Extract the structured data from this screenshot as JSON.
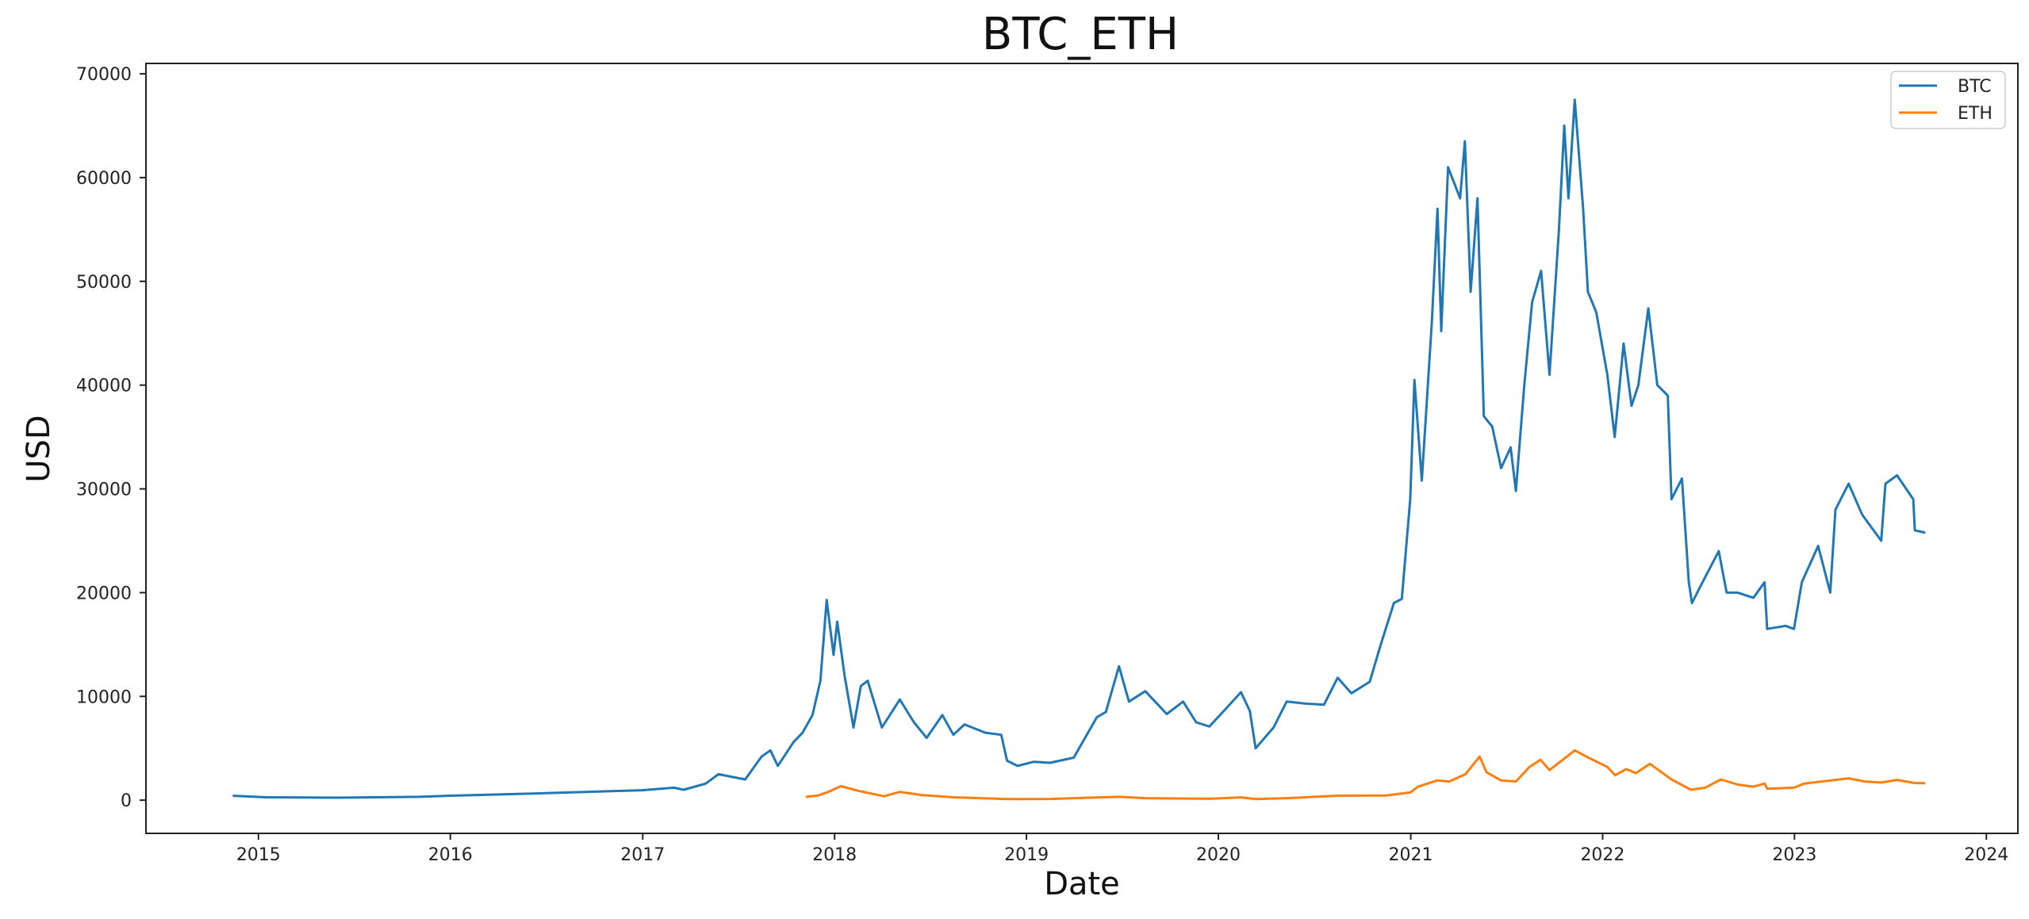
{
  "chart_data": {
    "type": "line",
    "title": "BTC_ETH",
    "xlabel": "Date",
    "ylabel": "USD",
    "xlim": [
      "2014-06-01",
      "2024-03-01"
    ],
    "ylim": [
      -3200,
      71000
    ],
    "xticks": [
      "2015",
      "2016",
      "2017",
      "2018",
      "2019",
      "2020",
      "2021",
      "2022",
      "2023",
      "2024"
    ],
    "yticks": [
      0,
      10000,
      20000,
      30000,
      40000,
      50000,
      60000,
      70000
    ],
    "ytick_labels": [
      "0",
      "10000",
      "20000",
      "30000",
      "40000",
      "50000",
      "60000",
      "70000"
    ],
    "grid": false,
    "legend_position": "top-right",
    "series": [
      {
        "name": "BTC",
        "color": "#1f77b4",
        "points": [
          [
            "2014-11-15",
            420
          ],
          [
            "2015-01-15",
            280
          ],
          [
            "2015-06-01",
            240
          ],
          [
            "2015-11-05",
            320
          ],
          [
            "2016-01-01",
            430
          ],
          [
            "2016-06-15",
            650
          ],
          [
            "2016-07-01",
            680
          ],
          [
            "2016-12-31",
            960
          ],
          [
            "2017-03-01",
            1200
          ],
          [
            "2017-03-20",
            1000
          ],
          [
            "2017-05-01",
            1600
          ],
          [
            "2017-05-25",
            2500
          ],
          [
            "2017-07-15",
            2000
          ],
          [
            "2017-08-15",
            4200
          ],
          [
            "2017-09-01",
            4800
          ],
          [
            "2017-09-15",
            3300
          ],
          [
            "2017-10-15",
            5600
          ],
          [
            "2017-11-01",
            6500
          ],
          [
            "2017-11-20",
            8200
          ],
          [
            "2017-12-05",
            11500
          ],
          [
            "2017-12-17",
            19300
          ],
          [
            "2017-12-30",
            14000
          ],
          [
            "2018-01-06",
            17200
          ],
          [
            "2018-01-20",
            12000
          ],
          [
            "2018-02-06",
            7000
          ],
          [
            "2018-02-20",
            11000
          ],
          [
            "2018-03-05",
            11500
          ],
          [
            "2018-04-01",
            7000
          ],
          [
            "2018-05-05",
            9700
          ],
          [
            "2018-06-01",
            7500
          ],
          [
            "2018-06-25",
            6000
          ],
          [
            "2018-07-25",
            8200
          ],
          [
            "2018-08-15",
            6300
          ],
          [
            "2018-09-05",
            7300
          ],
          [
            "2018-10-15",
            6500
          ],
          [
            "2018-11-14",
            6300
          ],
          [
            "2018-11-25",
            3800
          ],
          [
            "2018-12-15",
            3300
          ],
          [
            "2019-01-15",
            3700
          ],
          [
            "2019-02-15",
            3600
          ],
          [
            "2019-04-01",
            4100
          ],
          [
            "2019-05-15",
            8000
          ],
          [
            "2019-06-01",
            8500
          ],
          [
            "2019-06-26",
            12900
          ],
          [
            "2019-07-15",
            9500
          ],
          [
            "2019-08-15",
            10500
          ],
          [
            "2019-09-25",
            8300
          ],
          [
            "2019-10-26",
            9500
          ],
          [
            "2019-11-20",
            7500
          ],
          [
            "2019-12-15",
            7100
          ],
          [
            "2020-01-15",
            8800
          ],
          [
            "2020-02-13",
            10400
          ],
          [
            "2020-03-01",
            8600
          ],
          [
            "2020-03-12",
            5000
          ],
          [
            "2020-04-15",
            7000
          ],
          [
            "2020-05-10",
            9500
          ],
          [
            "2020-06-15",
            9300
          ],
          [
            "2020-07-20",
            9200
          ],
          [
            "2020-08-15",
            11800
          ],
          [
            "2020-09-10",
            10300
          ],
          [
            "2020-10-15",
            11400
          ],
          [
            "2020-11-05",
            15000
          ],
          [
            "2020-11-30",
            19000
          ],
          [
            "2020-12-15",
            19400
          ],
          [
            "2020-12-31",
            29000
          ],
          [
            "2021-01-08",
            40500
          ],
          [
            "2021-01-22",
            30800
          ],
          [
            "2021-02-10",
            46000
          ],
          [
            "2021-02-21",
            57000
          ],
          [
            "2021-02-28",
            45200
          ],
          [
            "2021-03-13",
            61000
          ],
          [
            "2021-04-05",
            58000
          ],
          [
            "2021-04-14",
            63500
          ],
          [
            "2021-04-25",
            49000
          ],
          [
            "2021-05-08",
            58000
          ],
          [
            "2021-05-20",
            37000
          ],
          [
            "2021-06-05",
            36000
          ],
          [
            "2021-06-22",
            32000
          ],
          [
            "2021-07-10",
            34000
          ],
          [
            "2021-07-20",
            29800
          ],
          [
            "2021-08-05",
            40000
          ],
          [
            "2021-08-20",
            48000
          ],
          [
            "2021-09-06",
            51000
          ],
          [
            "2021-09-22",
            41000
          ],
          [
            "2021-10-10",
            55000
          ],
          [
            "2021-10-20",
            65000
          ],
          [
            "2021-10-28",
            58000
          ],
          [
            "2021-11-09",
            67500
          ],
          [
            "2021-11-25",
            57000
          ],
          [
            "2021-12-04",
            49000
          ],
          [
            "2021-12-20",
            47000
          ],
          [
            "2022-01-10",
            41000
          ],
          [
            "2022-01-24",
            35000
          ],
          [
            "2022-02-10",
            44000
          ],
          [
            "2022-02-25",
            38000
          ],
          [
            "2022-03-10",
            40000
          ],
          [
            "2022-03-29",
            47400
          ],
          [
            "2022-04-15",
            40000
          ],
          [
            "2022-05-05",
            39000
          ],
          [
            "2022-05-12",
            29000
          ],
          [
            "2022-06-01",
            31000
          ],
          [
            "2022-06-14",
            21000
          ],
          [
            "2022-06-20",
            19000
          ],
          [
            "2022-07-10",
            21000
          ],
          [
            "2022-08-10",
            24000
          ],
          [
            "2022-08-25",
            20000
          ],
          [
            "2022-09-15",
            20000
          ],
          [
            "2022-10-15",
            19500
          ],
          [
            "2022-11-05",
            21000
          ],
          [
            "2022-11-10",
            16500
          ],
          [
            "2022-12-15",
            16800
          ],
          [
            "2022-12-31",
            16500
          ],
          [
            "2023-01-15",
            21000
          ],
          [
            "2023-02-15",
            24500
          ],
          [
            "2023-03-10",
            20000
          ],
          [
            "2023-03-20",
            28000
          ],
          [
            "2023-04-14",
            30500
          ],
          [
            "2023-05-10",
            27500
          ],
          [
            "2023-06-15",
            25000
          ],
          [
            "2023-06-23",
            30500
          ],
          [
            "2023-07-15",
            31300
          ],
          [
            "2023-08-15",
            29000
          ],
          [
            "2023-08-18",
            26000
          ],
          [
            "2023-09-05",
            25800
          ]
        ]
      },
      {
        "name": "ETH",
        "color": "#ff7f0e",
        "points": [
          [
            "2017-11-09",
            320
          ],
          [
            "2017-12-01",
            450
          ],
          [
            "2017-12-20",
            800
          ],
          [
            "2018-01-13",
            1350
          ],
          [
            "2018-02-15",
            900
          ],
          [
            "2018-04-05",
            380
          ],
          [
            "2018-05-05",
            800
          ],
          [
            "2018-06-15",
            500
          ],
          [
            "2018-08-15",
            280
          ],
          [
            "2018-11-25",
            110
          ],
          [
            "2018-12-15",
            100
          ],
          [
            "2019-02-15",
            120
          ],
          [
            "2019-06-26",
            320
          ],
          [
            "2019-08-15",
            190
          ],
          [
            "2019-12-15",
            130
          ],
          [
            "2020-02-13",
            270
          ],
          [
            "2020-03-12",
            110
          ],
          [
            "2020-05-15",
            200
          ],
          [
            "2020-08-15",
            430
          ],
          [
            "2020-11-15",
            450
          ],
          [
            "2020-12-31",
            740
          ],
          [
            "2021-01-15",
            1300
          ],
          [
            "2021-02-20",
            1900
          ],
          [
            "2021-03-15",
            1800
          ],
          [
            "2021-04-15",
            2500
          ],
          [
            "2021-05-12",
            4200
          ],
          [
            "2021-05-25",
            2700
          ],
          [
            "2021-06-22",
            1900
          ],
          [
            "2021-07-20",
            1800
          ],
          [
            "2021-08-15",
            3200
          ],
          [
            "2021-09-05",
            3900
          ],
          [
            "2021-09-22",
            2900
          ],
          [
            "2021-10-25",
            4200
          ],
          [
            "2021-11-09",
            4800
          ],
          [
            "2021-12-05",
            4100
          ],
          [
            "2022-01-10",
            3200
          ],
          [
            "2022-01-25",
            2400
          ],
          [
            "2022-02-15",
            3000
          ],
          [
            "2022-03-05",
            2600
          ],
          [
            "2022-04-01",
            3500
          ],
          [
            "2022-05-12",
            2000
          ],
          [
            "2022-06-18",
            1000
          ],
          [
            "2022-07-15",
            1200
          ],
          [
            "2022-08-14",
            2000
          ],
          [
            "2022-09-15",
            1500
          ],
          [
            "2022-10-15",
            1300
          ],
          [
            "2022-11-05",
            1600
          ],
          [
            "2022-11-10",
            1100
          ],
          [
            "2022-12-31",
            1200
          ],
          [
            "2023-01-20",
            1600
          ],
          [
            "2023-04-14",
            2100
          ],
          [
            "2023-05-15",
            1800
          ],
          [
            "2023-06-15",
            1700
          ],
          [
            "2023-07-15",
            1950
          ],
          [
            "2023-08-18",
            1650
          ],
          [
            "2023-09-05",
            1640
          ]
        ]
      }
    ]
  }
}
